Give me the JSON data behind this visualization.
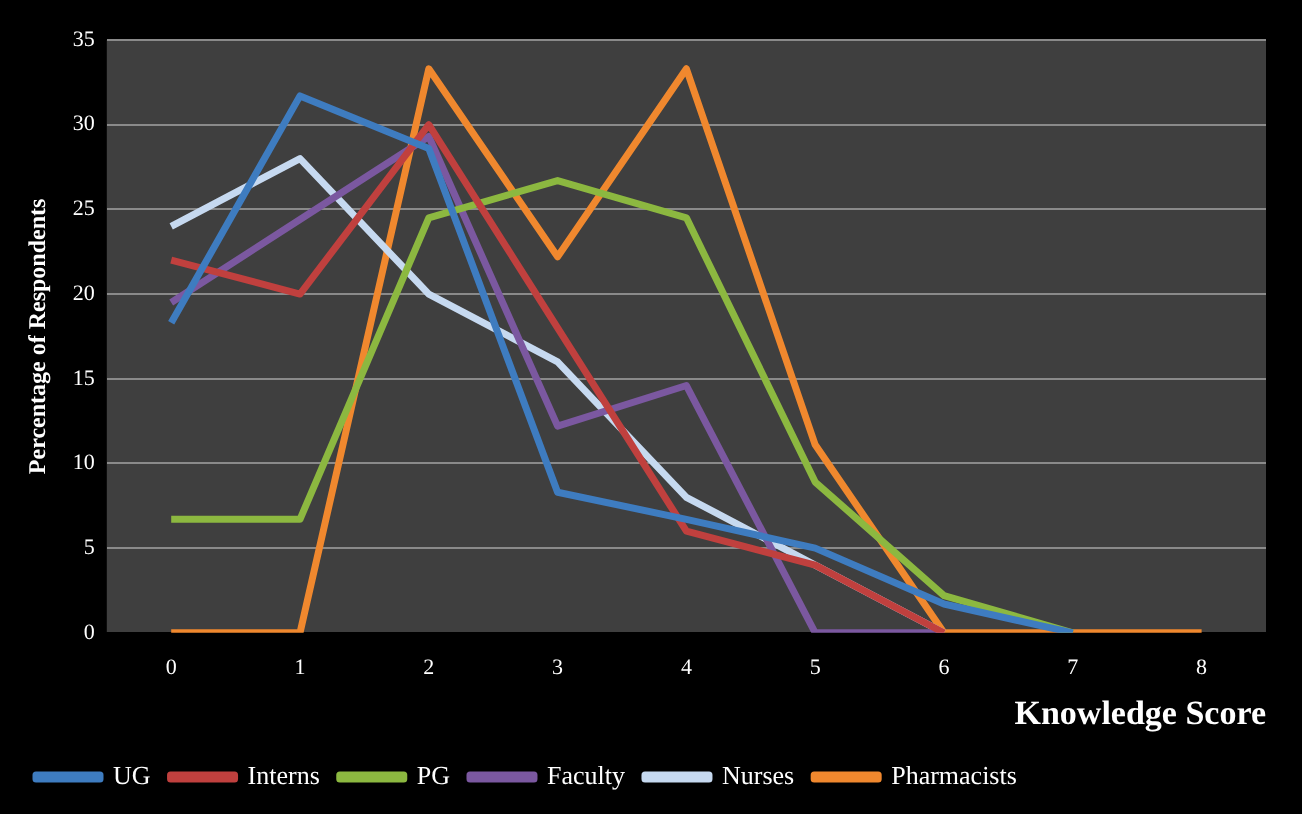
{
  "chart_data": {
    "type": "line",
    "xlabel": "Knowledge Score",
    "ylabel": "Percentage of Respondents",
    "categories": [
      "0",
      "1",
      "2",
      "3",
      "4",
      "5",
      "6",
      "7",
      "8"
    ],
    "ylim": [
      0,
      35
    ],
    "yticks": [
      0,
      5,
      10,
      15,
      20,
      25,
      30,
      35
    ],
    "grid": "y",
    "legend": "bottom",
    "marker": "none",
    "line_style": "solid",
    "series": [
      {
        "name": "UG",
        "color": "#3e7cc0",
        "values": [
          18.3,
          31.7,
          28.6,
          8.3,
          6.7,
          5,
          1.7,
          0,
          null
        ]
      },
      {
        "name": "Interns",
        "color": "#c0403e",
        "values": [
          22,
          20,
          30,
          18,
          6,
          4,
          0,
          null,
          null
        ]
      },
      {
        "name": "PG",
        "color": "#8cb840",
        "values": [
          6.7,
          6.7,
          24.5,
          26.7,
          24.5,
          8.9,
          2.2,
          0,
          null
        ]
      },
      {
        "name": "Faculty",
        "color": "#7b58a0",
        "values": [
          19.5,
          24.4,
          29.3,
          12.2,
          14.6,
          0,
          0,
          null,
          null
        ]
      },
      {
        "name": "Nurses",
        "color": "#c6d9f0",
        "values": [
          24,
          28,
          20,
          16,
          8,
          4,
          0,
          null,
          null
        ]
      },
      {
        "name": "Pharmacists",
        "color": "#f0882e",
        "values": [
          0,
          0,
          33.3,
          22.2,
          33.3,
          11.1,
          0,
          0,
          0
        ]
      }
    ]
  }
}
